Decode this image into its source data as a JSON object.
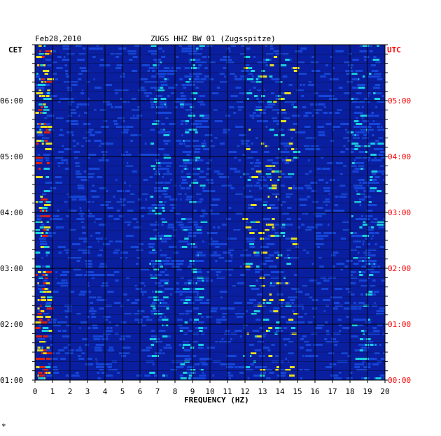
{
  "chart_data": {
    "type": "heatmap",
    "title_date": "Feb28,2010",
    "title_station": "ZUGS HHZ BW 01 (Zugsspitze)",
    "left_timezone": "CET",
    "right_timezone": "UTC",
    "xlabel": "FREQUENCY (HZ)",
    "xlim": [
      0,
      20
    ],
    "x_ticks": [
      "0",
      "1",
      "2",
      "3",
      "4",
      "5",
      "6",
      "7",
      "8",
      "9",
      "10",
      "11",
      "12",
      "13",
      "14",
      "15",
      "16",
      "17",
      "18",
      "19",
      "20"
    ],
    "y_ticks_left": [
      "06:00",
      "05:00",
      "04:00",
      "03:00",
      "02:00",
      "01:00"
    ],
    "y_ticks_right": [
      "05:00",
      "04:00",
      "03:00",
      "02:00",
      "01:00",
      "00:00"
    ],
    "time_range_cet": [
      "01:00",
      "07:00"
    ],
    "colors": {
      "background": "#0a1fa0",
      "low": "#1546d8",
      "mid": "#1ad0e0",
      "high": "#e8e020",
      "peak": "#e02010",
      "grid": "#000000",
      "right_axis": "#ff0000"
    },
    "energy_bands_hz": [
      {
        "from": 0.0,
        "to": 0.7,
        "level": "peak"
      },
      {
        "from": 6.5,
        "to": 7.5,
        "level": "mid"
      },
      {
        "from": 11.8,
        "to": 14.8,
        "level": "high"
      },
      {
        "from": 8.2,
        "to": 9.5,
        "level": "mid"
      },
      {
        "from": 18.0,
        "to": 19.6,
        "level": "mid"
      }
    ]
  },
  "footer_mark": "*"
}
